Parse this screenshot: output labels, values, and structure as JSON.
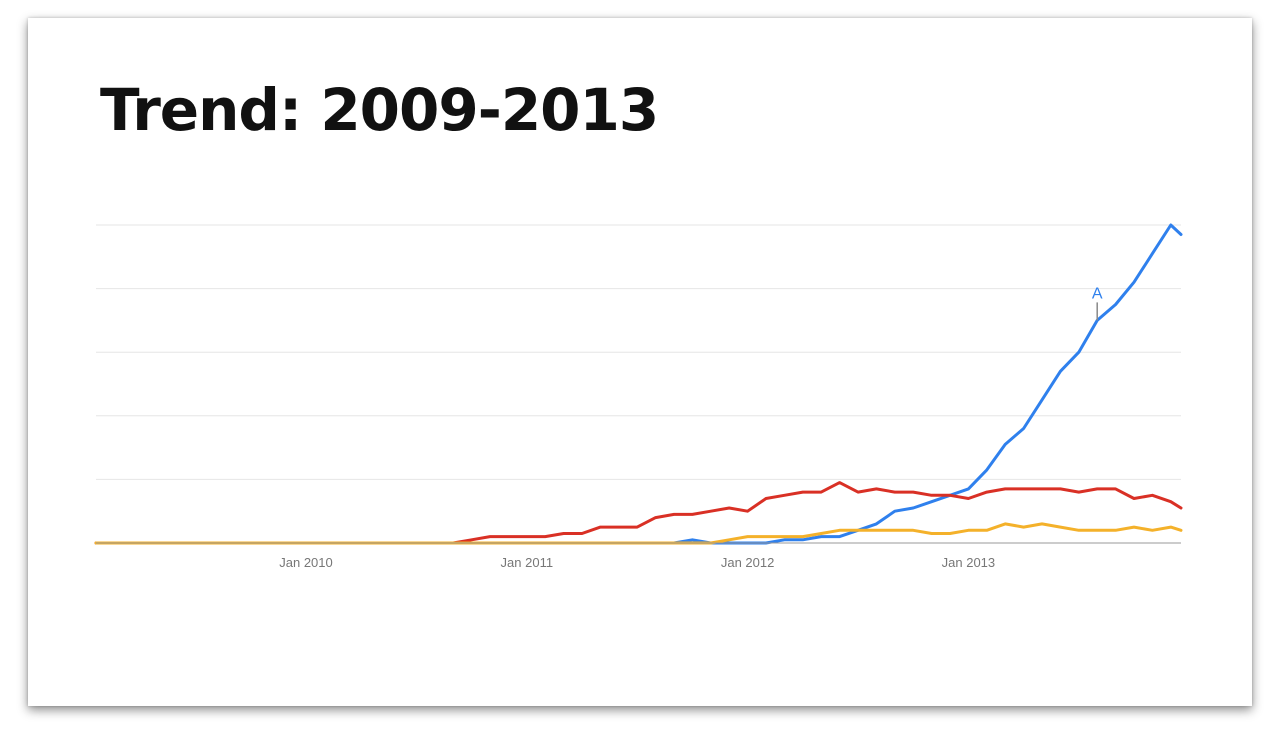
{
  "slide": {
    "title": "Trend: 2009-2013"
  },
  "chart_data": {
    "type": "line",
    "title": "Trend: 2009-2013",
    "xlabel": "",
    "ylabel": "",
    "x_start": "2009-01",
    "x_end": "2013-11",
    "x_tick_labels": [
      "Jan 2010",
      "Jan 2011",
      "Jan 2012",
      "Jan 2013"
    ],
    "x_tick_dates": [
      "2010-01",
      "2011-01",
      "2012-01",
      "2013-01"
    ],
    "ylim": [
      0,
      100
    ],
    "y_gridlines": [
      20,
      40,
      60,
      80,
      100
    ],
    "y_tick_labels_visible": false,
    "grid": true,
    "legend": "none",
    "series": [
      {
        "color": "#2f80ed",
        "points": [
          [
            "2009-01",
            0
          ],
          [
            "2011-09",
            0
          ],
          [
            "2011-10",
            1
          ],
          [
            "2011-11",
            0
          ],
          [
            "2012-01",
            0
          ],
          [
            "2012-02",
            0
          ],
          [
            "2012-03",
            1
          ],
          [
            "2012-04",
            1
          ],
          [
            "2012-05",
            2
          ],
          [
            "2012-06",
            2
          ],
          [
            "2012-07",
            4
          ],
          [
            "2012-08",
            6
          ],
          [
            "2012-09",
            10
          ],
          [
            "2012-10",
            11
          ],
          [
            "2012-11",
            13
          ],
          [
            "2012-12",
            15
          ],
          [
            "2013-01",
            17
          ],
          [
            "2013-02",
            23
          ],
          [
            "2013-03",
            31
          ],
          [
            "2013-04",
            36
          ],
          [
            "2013-05",
            45
          ],
          [
            "2013-06",
            54
          ],
          [
            "2013-07",
            60
          ],
          [
            "2013-08",
            70
          ],
          [
            "2013-09",
            75
          ],
          [
            "2013-10",
            82
          ],
          [
            "2013-11",
            91
          ],
          [
            "2013-12",
            100
          ],
          [
            "2014-01",
            97
          ]
        ]
      },
      {
        "color": "#d93025",
        "points": [
          [
            "2009-01",
            0
          ],
          [
            "2010-09",
            0
          ],
          [
            "2010-10",
            1
          ],
          [
            "2010-11",
            2
          ],
          [
            "2010-12",
            2
          ],
          [
            "2011-01",
            2
          ],
          [
            "2011-02",
            2
          ],
          [
            "2011-03",
            3
          ],
          [
            "2011-04",
            3
          ],
          [
            "2011-05",
            5
          ],
          [
            "2011-06",
            5
          ],
          [
            "2011-07",
            5
          ],
          [
            "2011-08",
            8
          ],
          [
            "2011-09",
            9
          ],
          [
            "2011-10",
            9
          ],
          [
            "2011-11",
            10
          ],
          [
            "2011-12",
            11
          ],
          [
            "2012-01",
            10
          ],
          [
            "2012-02",
            14
          ],
          [
            "2012-03",
            15
          ],
          [
            "2012-04",
            16
          ],
          [
            "2012-05",
            16
          ],
          [
            "2012-06",
            19
          ],
          [
            "2012-07",
            16
          ],
          [
            "2012-08",
            17
          ],
          [
            "2012-09",
            16
          ],
          [
            "2012-10",
            16
          ],
          [
            "2012-11",
            15
          ],
          [
            "2012-12",
            15
          ],
          [
            "2013-01",
            14
          ],
          [
            "2013-02",
            16
          ],
          [
            "2013-03",
            17
          ],
          [
            "2013-04",
            17
          ],
          [
            "2013-05",
            17
          ],
          [
            "2013-06",
            17
          ],
          [
            "2013-07",
            16
          ],
          [
            "2013-08",
            17
          ],
          [
            "2013-09",
            17
          ],
          [
            "2013-10",
            14
          ],
          [
            "2013-11",
            15
          ],
          [
            "2013-12",
            13
          ],
          [
            "2014-01",
            11
          ]
        ]
      },
      {
        "color": "#f4b12a",
        "points": [
          [
            "2009-01",
            0
          ],
          [
            "2011-11",
            0
          ],
          [
            "2011-12",
            1
          ],
          [
            "2012-01",
            2
          ],
          [
            "2012-02",
            2
          ],
          [
            "2012-03",
            2
          ],
          [
            "2012-04",
            2
          ],
          [
            "2012-05",
            3
          ],
          [
            "2012-06",
            4
          ],
          [
            "2012-07",
            4
          ],
          [
            "2012-08",
            4
          ],
          [
            "2012-09",
            4
          ],
          [
            "2012-10",
            4
          ],
          [
            "2012-11",
            3
          ],
          [
            "2012-12",
            3
          ],
          [
            "2013-01",
            4
          ],
          [
            "2013-02",
            4
          ],
          [
            "2013-03",
            6
          ],
          [
            "2013-04",
            5
          ],
          [
            "2013-05",
            6
          ],
          [
            "2013-06",
            5
          ],
          [
            "2013-07",
            4
          ],
          [
            "2013-08",
            4
          ],
          [
            "2013-09",
            4
          ],
          [
            "2013-10",
            5
          ],
          [
            "2013-11",
            4
          ],
          [
            "2013-12",
            5
          ],
          [
            "2014-01",
            4
          ]
        ]
      }
    ],
    "annotations": [
      {
        "label": "A",
        "date": "2013-08",
        "series_index": 0,
        "color": "#2f80ed"
      }
    ]
  }
}
